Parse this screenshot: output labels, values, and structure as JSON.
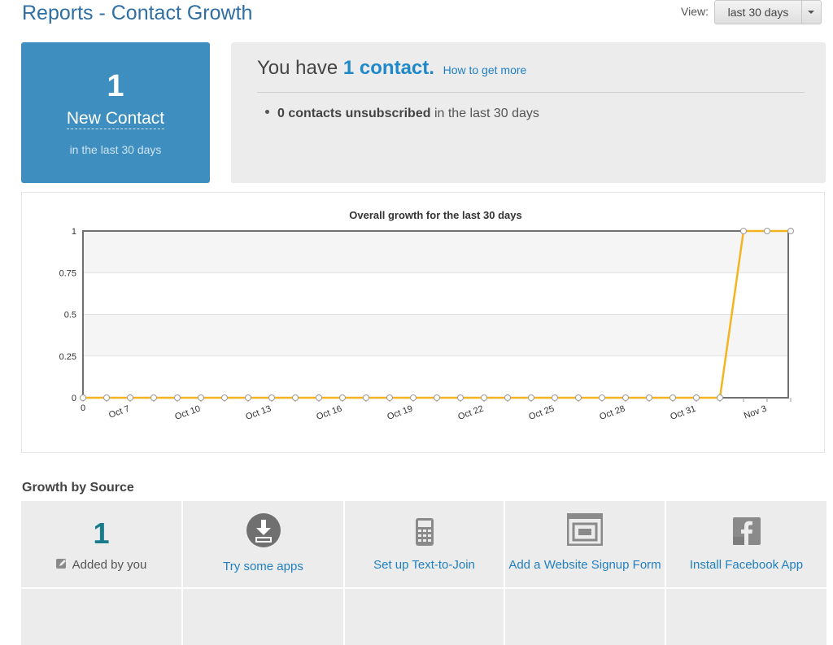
{
  "header": {
    "title": "Reports - Contact Growth",
    "view_label": "View:",
    "view_selected": "last 30 days"
  },
  "stat_tile": {
    "number": "1",
    "label": "New Contact",
    "sub": "in the last 30 days"
  },
  "summary": {
    "prefix": "You have",
    "count": "1 contact.",
    "more_link": "How to get more",
    "bullet_bold": "0 contacts unsubscribed",
    "bullet_rest": " in the last 30 days"
  },
  "chart_data": {
    "type": "line",
    "title": "Overall growth for the last 30 days",
    "xlabel": "",
    "ylabel": "",
    "ylim": [
      0,
      1
    ],
    "yticks": [
      "0",
      "0.25",
      "0.5",
      "0.75",
      "1"
    ],
    "x_tick_labels": [
      "0",
      "Oct 7",
      "Oct 10",
      "Oct 13",
      "Oct 16",
      "Oct 19",
      "Oct 22",
      "Oct 25",
      "Oct 28",
      "Oct 31",
      "Nov 3"
    ],
    "grid": true,
    "series": [
      {
        "color": "#f5b320",
        "values": [
          0,
          0,
          0,
          0,
          0,
          0,
          0,
          0,
          0,
          0,
          0,
          0,
          0,
          0,
          0,
          0,
          0,
          0,
          0,
          0,
          0,
          0,
          0,
          0,
          0,
          0,
          0,
          0,
          1,
          1,
          1
        ]
      }
    ]
  },
  "growth_by_source": {
    "title": "Growth by Source",
    "items": [
      {
        "number": "1",
        "label": "Added by you",
        "icon": "pencil-icon"
      },
      {
        "label": "Try some apps",
        "icon": "download-circle-icon"
      },
      {
        "label": "Set up Text-to-Join",
        "icon": "phone-keypad-icon"
      },
      {
        "label": "Add a Website Signup Form",
        "icon": "website-form-icon"
      },
      {
        "label": "Install Facebook App",
        "icon": "facebook-icon"
      }
    ]
  }
}
